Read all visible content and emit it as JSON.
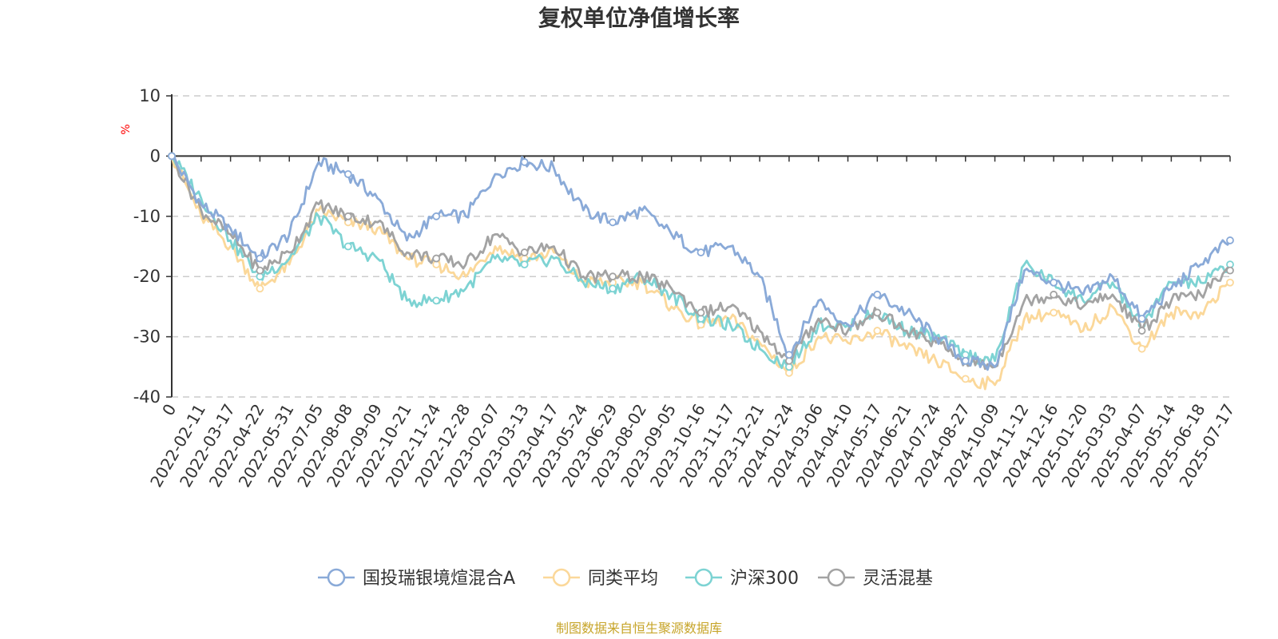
{
  "source_note": "制图数据来自恒生聚源数据库",
  "colors": {
    "fund": "#8aaad8",
    "peer_avg": "#fbd89a",
    "hs300": "#7dd3d3",
    "flex_mix": "#a3a3a3",
    "source_text": "#c7a52a",
    "ylabel": "#ff0000",
    "grid": "#cccccc"
  },
  "chart_data": {
    "type": "line",
    "title": "复权单位净值增长率",
    "ylabel": "%",
    "xlabel": "",
    "ylim": [
      -40,
      10
    ],
    "y_ticks": [
      10,
      0,
      -10,
      -20,
      -30,
      -40
    ],
    "grid": "horizontal dashed",
    "legend_position": "bottom-center",
    "x_tick_labels": [
      "0",
      "2022-02-11",
      "2022-03-17",
      "2022-04-22",
      "2022-05-31",
      "2022-07-05",
      "2022-08-08",
      "2022-09-09",
      "2022-10-21",
      "2022-11-24",
      "2022-12-28",
      "2023-02-07",
      "2023-03-13",
      "2023-04-17",
      "2023-05-24",
      "2023-06-29",
      "2023-08-02",
      "2023-09-05",
      "2023-10-16",
      "2023-11-17",
      "2023-12-21",
      "2024-01-24",
      "2024-03-06",
      "2024-04-10",
      "2024-05-17",
      "2024-06-21",
      "2024-07-24",
      "2024-08-27",
      "2024-10-09",
      "2024-11-12",
      "2024-12-16",
      "2025-01-20",
      "2025-03-03",
      "2025-04-07",
      "2025-05-14",
      "2025-06-18",
      "2025-07-17"
    ],
    "x": [
      "0",
      "2022-02-11",
      "2022-03-17",
      "2022-04-22",
      "2022-05-31",
      "2022-07-05",
      "2022-08-08",
      "2022-09-09",
      "2022-10-21",
      "2022-11-24",
      "2022-12-28",
      "2023-02-07",
      "2023-03-13",
      "2023-04-17",
      "2023-05-24",
      "2023-06-29",
      "2023-08-02",
      "2023-09-05",
      "2023-10-16",
      "2023-11-17",
      "2023-12-21",
      "2024-01-24",
      "2024-03-06",
      "2024-04-10",
      "2024-05-17",
      "2024-06-21",
      "2024-07-24",
      "2024-08-27",
      "2024-10-09",
      "2024-11-12",
      "2024-12-16",
      "2025-01-20",
      "2025-03-03",
      "2025-04-07",
      "2025-05-14",
      "2025-06-18",
      "2025-07-17"
    ],
    "series": [
      {
        "name": "国投瑞银境煊混合A",
        "color": "#8aaad8",
        "values": [
          0,
          -8,
          -12,
          -17,
          -13,
          -1,
          -3,
          -7,
          -14,
          -10,
          -10,
          -3,
          -1,
          -2,
          -9,
          -11,
          -9,
          -13,
          -16,
          -15,
          -20,
          -33,
          -24,
          -28,
          -23,
          -26,
          -30,
          -34,
          -35,
          -19,
          -21,
          -23,
          -20,
          -27,
          -22,
          -18,
          -14
        ]
      },
      {
        "name": "同类平均",
        "color": "#fbd89a",
        "values": [
          0,
          -10,
          -15,
          -22,
          -18,
          -9,
          -11,
          -12,
          -17,
          -18,
          -20,
          -15,
          -17,
          -16,
          -21,
          -21,
          -21,
          -25,
          -28,
          -27,
          -31,
          -36,
          -30,
          -31,
          -29,
          -32,
          -34,
          -37,
          -38,
          -27,
          -26,
          -29,
          -25,
          -32,
          -26,
          -26,
          -21
        ]
      },
      {
        "name": "沪深300",
        "color": "#7dd3d3",
        "values": [
          0,
          -7,
          -14,
          -20,
          -17,
          -10,
          -15,
          -17,
          -24,
          -24,
          -22,
          -17,
          -18,
          -17,
          -21,
          -22,
          -20,
          -23,
          -27,
          -28,
          -32,
          -35,
          -28,
          -28,
          -26,
          -29,
          -30,
          -33,
          -34,
          -18,
          -21,
          -24,
          -21,
          -28,
          -21,
          -21,
          -18
        ]
      },
      {
        "name": "灵活混基",
        "color": "#a3a3a3",
        "values": [
          0,
          -9,
          -13,
          -19,
          -16,
          -8,
          -10,
          -11,
          -16,
          -17,
          -18,
          -13,
          -16,
          -15,
          -20,
          -20,
          -20,
          -22,
          -26,
          -25,
          -29,
          -34,
          -27,
          -29,
          -26,
          -29,
          -31,
          -34,
          -35,
          -24,
          -23,
          -25,
          -23,
          -29,
          -24,
          -23,
          -19
        ]
      }
    ]
  }
}
